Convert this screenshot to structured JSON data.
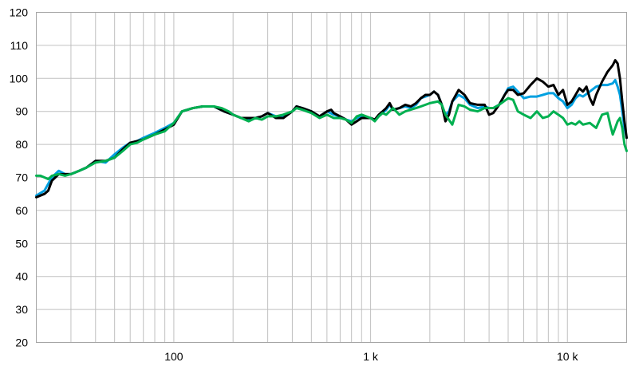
{
  "chart_data": {
    "type": "line",
    "x_scale": "log",
    "xlim": [
      20,
      20000
    ],
    "ylim": [
      20,
      120
    ],
    "grid": true,
    "legend": "none",
    "y_ticks": [
      20,
      30,
      40,
      50,
      60,
      70,
      80,
      90,
      100,
      110,
      120
    ],
    "y_tick_labels": [
      "20",
      "30",
      "40",
      "50",
      "60",
      "70",
      "80",
      "90",
      "100",
      "110",
      "120"
    ],
    "x_tick_values": [
      100,
      1000,
      10000
    ],
    "x_tick_labels": [
      "100",
      "1 k",
      "10 k"
    ],
    "series": [
      {
        "color": "#00a0e0",
        "points": [
          [
            20,
            64.5
          ],
          [
            22,
            66
          ],
          [
            24,
            70
          ],
          [
            26,
            72
          ],
          [
            28,
            71
          ],
          [
            30,
            71
          ],
          [
            33,
            72
          ],
          [
            36,
            73
          ],
          [
            40,
            75
          ],
          [
            45,
            74.5
          ],
          [
            50,
            77
          ],
          [
            55,
            79
          ],
          [
            60,
            80.5
          ],
          [
            65,
            81
          ],
          [
            70,
            82
          ],
          [
            80,
            83.5
          ],
          [
            90,
            85
          ],
          [
            100,
            86.5
          ],
          [
            110,
            90
          ],
          [
            125,
            91
          ],
          [
            140,
            91.5
          ],
          [
            160,
            91.5
          ],
          [
            180,
            90
          ],
          [
            200,
            89
          ],
          [
            220,
            88
          ],
          [
            240,
            87.5
          ],
          [
            260,
            88
          ],
          [
            280,
            88.5
          ],
          [
            300,
            89.5
          ],
          [
            330,
            88.5
          ],
          [
            360,
            88.5
          ],
          [
            400,
            90
          ],
          [
            420,
            91.5
          ],
          [
            450,
            91
          ],
          [
            500,
            90
          ],
          [
            550,
            88.5
          ],
          [
            600,
            90
          ],
          [
            650,
            89
          ],
          [
            700,
            88.5
          ],
          [
            750,
            87.5
          ],
          [
            800,
            87
          ],
          [
            850,
            88
          ],
          [
            900,
            88.5
          ],
          [
            950,
            88
          ],
          [
            1000,
            88
          ],
          [
            1050,
            87.5
          ],
          [
            1100,
            88.5
          ],
          [
            1150,
            89.5
          ],
          [
            1200,
            90.5
          ],
          [
            1250,
            92
          ],
          [
            1300,
            90.5
          ],
          [
            1400,
            91
          ],
          [
            1500,
            91.5
          ],
          [
            1600,
            91
          ],
          [
            1700,
            92
          ],
          [
            1800,
            94
          ],
          [
            1900,
            94.5
          ],
          [
            2000,
            95
          ],
          [
            2100,
            96
          ],
          [
            2200,
            95
          ],
          [
            2300,
            92
          ],
          [
            2400,
            89
          ],
          [
            2500,
            90
          ],
          [
            2600,
            93
          ],
          [
            2800,
            95
          ],
          [
            3000,
            94
          ],
          [
            3200,
            92
          ],
          [
            3500,
            91
          ],
          [
            3800,
            91.5
          ],
          [
            4000,
            91
          ],
          [
            4200,
            91
          ],
          [
            4500,
            92
          ],
          [
            4800,
            95
          ],
          [
            5000,
            97
          ],
          [
            5300,
            97.5
          ],
          [
            5600,
            96
          ],
          [
            6000,
            94
          ],
          [
            6500,
            94.5
          ],
          [
            7000,
            94.5
          ],
          [
            7500,
            95
          ],
          [
            8000,
            95.5
          ],
          [
            8500,
            95.5
          ],
          [
            9000,
            94
          ],
          [
            9500,
            93
          ],
          [
            10000,
            91
          ],
          [
            10500,
            92
          ],
          [
            11000,
            94
          ],
          [
            11500,
            95
          ],
          [
            12000,
            94.5
          ],
          [
            13000,
            96
          ],
          [
            14000,
            97.5
          ],
          [
            15000,
            98
          ],
          [
            16000,
            98
          ],
          [
            17000,
            98.5
          ],
          [
            17500,
            99.5
          ],
          [
            18000,
            97.5
          ],
          [
            18500,
            95
          ],
          [
            19000,
            90
          ],
          [
            19500,
            85
          ],
          [
            20000,
            82
          ]
        ]
      },
      {
        "color": "#000000",
        "points": [
          [
            20,
            64
          ],
          [
            22,
            65
          ],
          [
            23,
            66
          ],
          [
            24,
            69
          ],
          [
            26,
            71
          ],
          [
            28,
            71
          ],
          [
            30,
            71
          ],
          [
            33,
            72
          ],
          [
            36,
            73
          ],
          [
            40,
            75
          ],
          [
            45,
            75
          ],
          [
            50,
            76
          ],
          [
            55,
            78.5
          ],
          [
            60,
            80.5
          ],
          [
            65,
            81
          ],
          [
            70,
            81.5
          ],
          [
            80,
            83
          ],
          [
            90,
            84.5
          ],
          [
            100,
            86
          ],
          [
            110,
            90
          ],
          [
            125,
            91
          ],
          [
            140,
            91.5
          ],
          [
            160,
            91.5
          ],
          [
            180,
            90
          ],
          [
            200,
            89
          ],
          [
            220,
            88
          ],
          [
            240,
            88
          ],
          [
            260,
            88
          ],
          [
            280,
            88.5
          ],
          [
            300,
            89.5
          ],
          [
            330,
            88
          ],
          [
            360,
            88
          ],
          [
            400,
            90
          ],
          [
            420,
            91.5
          ],
          [
            450,
            91
          ],
          [
            500,
            90
          ],
          [
            550,
            88.5
          ],
          [
            600,
            90
          ],
          [
            630,
            90.5
          ],
          [
            650,
            89.5
          ],
          [
            700,
            88.5
          ],
          [
            750,
            87.5
          ],
          [
            800,
            86
          ],
          [
            850,
            87
          ],
          [
            900,
            88
          ],
          [
            1000,
            88
          ],
          [
            1050,
            87.5
          ],
          [
            1100,
            89
          ],
          [
            1150,
            90
          ],
          [
            1200,
            91
          ],
          [
            1250,
            92.5
          ],
          [
            1300,
            90.5
          ],
          [
            1400,
            91
          ],
          [
            1500,
            92
          ],
          [
            1600,
            91.5
          ],
          [
            1700,
            92.5
          ],
          [
            1800,
            94
          ],
          [
            1900,
            95
          ],
          [
            2000,
            95
          ],
          [
            2100,
            96
          ],
          [
            2200,
            95
          ],
          [
            2300,
            92
          ],
          [
            2400,
            87
          ],
          [
            2500,
            89
          ],
          [
            2600,
            93
          ],
          [
            2800,
            96.5
          ],
          [
            3000,
            95
          ],
          [
            3200,
            92.5
          ],
          [
            3500,
            92
          ],
          [
            3800,
            92
          ],
          [
            4000,
            89
          ],
          [
            4200,
            89.5
          ],
          [
            4500,
            92
          ],
          [
            4800,
            95
          ],
          [
            5000,
            96.5
          ],
          [
            5300,
            96.5
          ],
          [
            5600,
            95
          ],
          [
            6000,
            95.5
          ],
          [
            6500,
            98
          ],
          [
            7000,
            100
          ],
          [
            7500,
            99
          ],
          [
            8000,
            97.5
          ],
          [
            8500,
            98
          ],
          [
            9000,
            95
          ],
          [
            9500,
            96.5
          ],
          [
            10000,
            92
          ],
          [
            10500,
            93
          ],
          [
            11000,
            95
          ],
          [
            11500,
            97
          ],
          [
            12000,
            96
          ],
          [
            12500,
            97.5
          ],
          [
            13000,
            94
          ],
          [
            13500,
            92
          ],
          [
            14000,
            95
          ],
          [
            15000,
            99
          ],
          [
            16000,
            102
          ],
          [
            17000,
            104
          ],
          [
            17500,
            105.5
          ],
          [
            18000,
            104.5
          ],
          [
            18500,
            100
          ],
          [
            19000,
            93
          ],
          [
            19500,
            87
          ],
          [
            20000,
            82
          ]
        ]
      },
      {
        "color": "#00b050",
        "points": [
          [
            20,
            70.5
          ],
          [
            21,
            70.5
          ],
          [
            22,
            70
          ],
          [
            23,
            69.5
          ],
          [
            24,
            70.5
          ],
          [
            26,
            71
          ],
          [
            28,
            70.5
          ],
          [
            30,
            71
          ],
          [
            33,
            72
          ],
          [
            36,
            73
          ],
          [
            40,
            74.5
          ],
          [
            45,
            75
          ],
          [
            50,
            76
          ],
          [
            55,
            78
          ],
          [
            60,
            80
          ],
          [
            65,
            80.5
          ],
          [
            70,
            81.5
          ],
          [
            80,
            83
          ],
          [
            90,
            84
          ],
          [
            100,
            86.5
          ],
          [
            110,
            90
          ],
          [
            125,
            91
          ],
          [
            140,
            91.5
          ],
          [
            160,
            91.5
          ],
          [
            175,
            91
          ],
          [
            190,
            90
          ],
          [
            200,
            89
          ],
          [
            220,
            88
          ],
          [
            240,
            87
          ],
          [
            260,
            88
          ],
          [
            280,
            87.5
          ],
          [
            300,
            88.5
          ],
          [
            330,
            88.5
          ],
          [
            360,
            89
          ],
          [
            400,
            90
          ],
          [
            420,
            91
          ],
          [
            450,
            90.5
          ],
          [
            500,
            89.5
          ],
          [
            550,
            88
          ],
          [
            600,
            89
          ],
          [
            650,
            88
          ],
          [
            700,
            88
          ],
          [
            750,
            87.5
          ],
          [
            800,
            86.5
          ],
          [
            850,
            88.5
          ],
          [
            900,
            89
          ],
          [
            1000,
            88
          ],
          [
            1050,
            87
          ],
          [
            1100,
            88.5
          ],
          [
            1150,
            89.5
          ],
          [
            1200,
            89
          ],
          [
            1300,
            91
          ],
          [
            1400,
            89
          ],
          [
            1500,
            90
          ],
          [
            1700,
            91
          ],
          [
            1800,
            91.5
          ],
          [
            2000,
            92.5
          ],
          [
            2200,
            93
          ],
          [
            2300,
            92
          ],
          [
            2400,
            89
          ],
          [
            2600,
            86
          ],
          [
            2800,
            92
          ],
          [
            3000,
            91.5
          ],
          [
            3200,
            90.5
          ],
          [
            3500,
            90
          ],
          [
            3800,
            91
          ],
          [
            4000,
            91
          ],
          [
            4200,
            91
          ],
          [
            4500,
            92
          ],
          [
            5000,
            94
          ],
          [
            5300,
            93.5
          ],
          [
            5600,
            90
          ],
          [
            6000,
            89
          ],
          [
            6500,
            88
          ],
          [
            7000,
            90
          ],
          [
            7500,
            88
          ],
          [
            8000,
            88.5
          ],
          [
            8500,
            90
          ],
          [
            9000,
            89
          ],
          [
            9500,
            88
          ],
          [
            10000,
            86
          ],
          [
            10500,
            86.5
          ],
          [
            11000,
            86
          ],
          [
            11500,
            87
          ],
          [
            12000,
            86
          ],
          [
            13000,
            86.5
          ],
          [
            14000,
            85
          ],
          [
            15000,
            89
          ],
          [
            16000,
            89.5
          ],
          [
            16500,
            86
          ],
          [
            17000,
            83
          ],
          [
            17500,
            85
          ],
          [
            18000,
            87
          ],
          [
            18500,
            88
          ],
          [
            19000,
            85
          ],
          [
            19500,
            80
          ],
          [
            20000,
            78
          ]
        ]
      }
    ]
  }
}
